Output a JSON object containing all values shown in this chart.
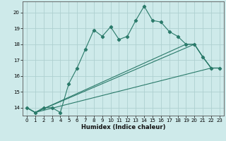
{
  "xlabel": "Humidex (Indice chaleur)",
  "ylabel": "",
  "background_color": "#ceeaea",
  "grid_color": "#aed0d0",
  "line_color": "#2a7a6a",
  "xlim": [
    -0.5,
    23.5
  ],
  "ylim": [
    13.5,
    20.7
  ],
  "yticks": [
    14,
    15,
    16,
    17,
    18,
    19,
    20
  ],
  "xticks": [
    0,
    1,
    2,
    3,
    4,
    5,
    6,
    7,
    8,
    9,
    10,
    11,
    12,
    13,
    14,
    15,
    16,
    17,
    18,
    19,
    20,
    21,
    22,
    23
  ],
  "series": [
    {
      "x": [
        0,
        1,
        2,
        3,
        4,
        5,
        6,
        7,
        8,
        9,
        10,
        11,
        12,
        13,
        14,
        15,
        16,
        17,
        18,
        19,
        20,
        21,
        22,
        23
      ],
      "y": [
        14.0,
        13.7,
        14.0,
        14.0,
        13.7,
        15.5,
        16.5,
        17.7,
        18.9,
        18.5,
        19.1,
        18.3,
        18.5,
        19.5,
        20.4,
        19.5,
        19.4,
        18.8,
        18.5,
        18.0,
        18.0,
        17.2,
        16.5,
        16.5
      ],
      "marker": true
    },
    {
      "x": [
        0,
        1,
        22,
        23
      ],
      "y": [
        14.0,
        13.7,
        16.5,
        16.5
      ],
      "marker": false
    },
    {
      "x": [
        0,
        1,
        20,
        21,
        22,
        23
      ],
      "y": [
        14.0,
        13.7,
        18.0,
        17.2,
        16.5,
        16.5
      ],
      "marker": false
    },
    {
      "x": [
        0,
        1,
        19,
        20,
        21,
        22,
        23
      ],
      "y": [
        14.0,
        13.7,
        18.0,
        18.0,
        17.2,
        16.5,
        16.5
      ],
      "marker": false
    }
  ]
}
